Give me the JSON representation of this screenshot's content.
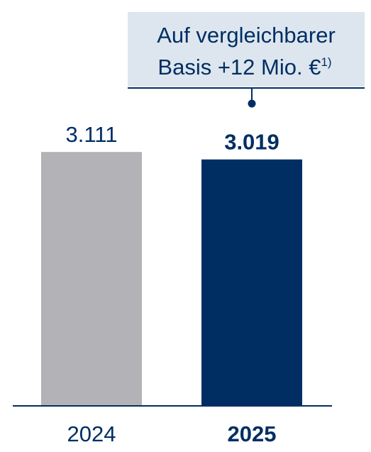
{
  "chart_data": {
    "type": "bar",
    "categories": [
      "2024",
      "2025"
    ],
    "values": [
      3111,
      3019
    ],
    "value_labels": [
      "3.111",
      "3.019"
    ],
    "ylim": [
      0,
      3400
    ],
    "bar_colors": [
      "#b3b3b7",
      "#002e63"
    ],
    "text_color": "#002e63",
    "highlight_index": 1,
    "annotation": {
      "lines": [
        "Auf vergleichbarer",
        "Basis +12 Mio. €"
      ],
      "superscript": "1)",
      "background": "#dde6ee",
      "target_index": 1
    }
  }
}
